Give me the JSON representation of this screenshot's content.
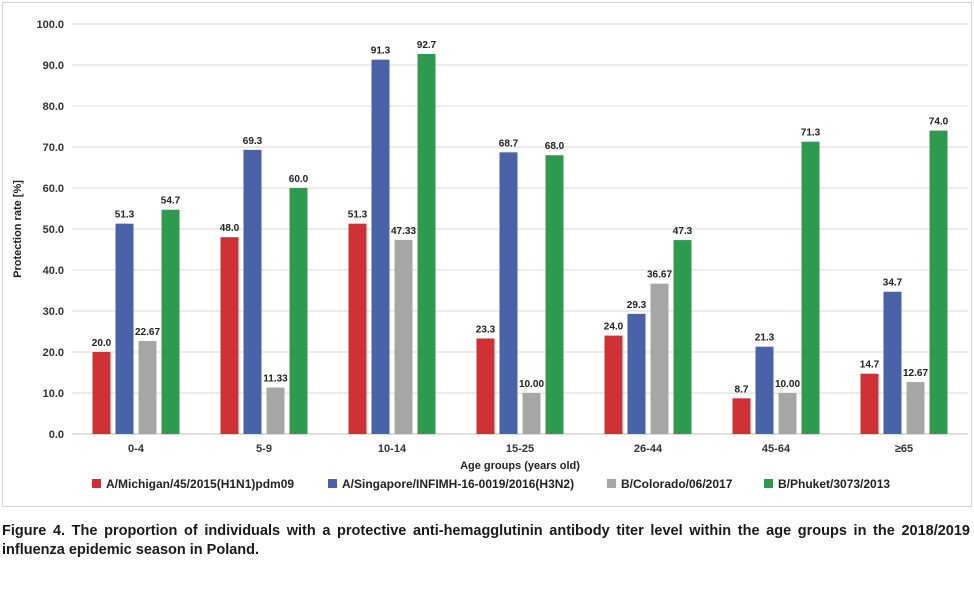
{
  "chart_data": {
    "type": "bar",
    "title": "",
    "xlabel": "Age groups (years old)",
    "ylabel": "Protection rate [%]",
    "ylim": [
      0,
      100
    ],
    "y_ticks": [
      "0.0",
      "10.0",
      "20.0",
      "30.0",
      "40.0",
      "50.0",
      "60.0",
      "70.0",
      "80.0",
      "90.0",
      "100.0"
    ],
    "grid": true,
    "legend_position": "bottom",
    "categories": [
      "0-4",
      "5-9",
      "10-14",
      "15-25",
      "26-44",
      "45-64",
      "≥65"
    ],
    "series": [
      {
        "name": "A/Michigan/45/2015(H1N1)pdm09",
        "color": "#d03035",
        "values": [
          20.0,
          48.0,
          51.3,
          23.3,
          24.0,
          8.7,
          14.7
        ],
        "labels": [
          "20.0",
          "48.0",
          "51.3",
          "23.3",
          "24.0",
          "8.7",
          "14.7"
        ]
      },
      {
        "name": "A/Singapore/INFIMH-16-0019/2016(H3N2)",
        "color": "#4a62a8",
        "values": [
          51.3,
          69.3,
          91.3,
          68.7,
          29.3,
          21.3,
          34.7
        ],
        "labels": [
          "51.3",
          "69.3",
          "91.3",
          "68.7",
          "29.3",
          "21.3",
          "34.7"
        ]
      },
      {
        "name": "B/Colorado/06/2017",
        "color": "#a6a6a6",
        "values": [
          22.67,
          11.33,
          47.33,
          10.0,
          36.67,
          10.0,
          12.67
        ],
        "labels": [
          "22.67",
          "11.33",
          "47.33",
          "10.00",
          "36.67",
          "10.00",
          "12.67"
        ]
      },
      {
        "name": "B/Phuket/3073/2013",
        "color": "#2e9a4e",
        "values": [
          54.7,
          60.0,
          92.7,
          68.0,
          47.3,
          71.3,
          74.0
        ],
        "labels": [
          "54.7",
          "60.0",
          "92.7",
          "68.0",
          "47.3",
          "71.3",
          "74.0"
        ]
      }
    ]
  },
  "caption": "Figure 4. The proportion of individuals with a protective anti-hemagglutinin antibody titer level within the age groups in the 2018/2019 influenza epidemic season in Poland."
}
